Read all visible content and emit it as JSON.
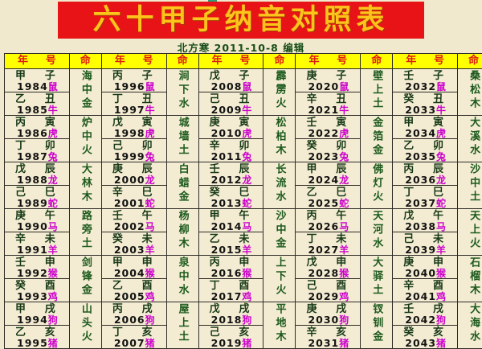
{
  "page": {
    "title": "六十甲子纳音对照表",
    "subtitle": "北方寒 2011-10-8 编辑"
  },
  "colors": {
    "page_background": "#f1e9cd",
    "title_bar_background": "#e81317",
    "title_text": "#ffc41c",
    "header_background": "#ffff00",
    "header_text": "#e01c10",
    "stem_branch_text": "#173917",
    "ming_text": "#1d5a1d",
    "year_number_text": "#131313",
    "zodiac_text": "#cc00cc",
    "grid_border": "#2e2c28"
  },
  "table": {
    "header": {
      "year_left": "年",
      "year_right": "号",
      "ming": "命"
    },
    "groups": [
      {
        "pairs": [
          {
            "rows": [
              {
                "stem": "甲",
                "branch": "子",
                "year": "1984",
                "zodiac": "鼠"
              },
              {
                "stem": "乙",
                "branch": "丑",
                "year": "1985",
                "zodiac": "牛"
              }
            ],
            "ming": "海中金"
          },
          {
            "rows": [
              {
                "stem": "丙",
                "branch": "寅",
                "year": "1986",
                "zodiac": "虎"
              },
              {
                "stem": "丁",
                "branch": "卯",
                "year": "1987",
                "zodiac": "兔"
              }
            ],
            "ming": "炉中火"
          },
          {
            "rows": [
              {
                "stem": "戊",
                "branch": "辰",
                "year": "1988",
                "zodiac": "龙"
              },
              {
                "stem": "己",
                "branch": "巳",
                "year": "1989",
                "zodiac": "蛇"
              }
            ],
            "ming": "大林木"
          },
          {
            "rows": [
              {
                "stem": "庚",
                "branch": "午",
                "year": "1990",
                "zodiac": "马"
              },
              {
                "stem": "辛",
                "branch": "未",
                "year": "1991",
                "zodiac": "羊"
              }
            ],
            "ming": "路旁土"
          },
          {
            "rows": [
              {
                "stem": "壬",
                "branch": "申",
                "year": "1992",
                "zodiac": "猴"
              },
              {
                "stem": "癸",
                "branch": "酉",
                "year": "1993",
                "zodiac": "鸡"
              }
            ],
            "ming": "剑锋金"
          },
          {
            "rows": [
              {
                "stem": "甲",
                "branch": "戌",
                "year": "1994",
                "zodiac": "狗"
              },
              {
                "stem": "乙",
                "branch": "亥",
                "year": "1995",
                "zodiac": "猪"
              }
            ],
            "ming": "山头火"
          }
        ]
      },
      {
        "pairs": [
          {
            "rows": [
              {
                "stem": "丙",
                "branch": "子",
                "year": "1996",
                "zodiac": "鼠"
              },
              {
                "stem": "丁",
                "branch": "丑",
                "year": "1997",
                "zodiac": "牛"
              }
            ],
            "ming": "涧下水"
          },
          {
            "rows": [
              {
                "stem": "戊",
                "branch": "寅",
                "year": "1998",
                "zodiac": "虎"
              },
              {
                "stem": "己",
                "branch": "卯",
                "year": "1999",
                "zodiac": "兔"
              }
            ],
            "ming": "城墙土"
          },
          {
            "rows": [
              {
                "stem": "庚",
                "branch": "辰",
                "year": "2000",
                "zodiac": "龙"
              },
              {
                "stem": "辛",
                "branch": "巳",
                "year": "2001",
                "zodiac": "蛇"
              }
            ],
            "ming": "白蜡金"
          },
          {
            "rows": [
              {
                "stem": "壬",
                "branch": "午",
                "year": "2002",
                "zodiac": "马"
              },
              {
                "stem": "癸",
                "branch": "未",
                "year": "2003",
                "zodiac": "羊"
              }
            ],
            "ming": "杨柳木"
          },
          {
            "rows": [
              {
                "stem": "甲",
                "branch": "申",
                "year": "2004",
                "zodiac": "猴"
              },
              {
                "stem": "乙",
                "branch": "酉",
                "year": "2005",
                "zodiac": "鸡"
              }
            ],
            "ming": "泉中水"
          },
          {
            "rows": [
              {
                "stem": "丙",
                "branch": "戌",
                "year": "2006",
                "zodiac": "狗"
              },
              {
                "stem": "丁",
                "branch": "亥",
                "year": "2007",
                "zodiac": "猪"
              }
            ],
            "ming": "屋上土"
          }
        ]
      },
      {
        "pairs": [
          {
            "rows": [
              {
                "stem": "戊",
                "branch": "子",
                "year": "2008",
                "zodiac": "鼠"
              },
              {
                "stem": "己",
                "branch": "丑",
                "year": "2009",
                "zodiac": "牛"
              }
            ],
            "ming": "霹雳火"
          },
          {
            "rows": [
              {
                "stem": "庚",
                "branch": "寅",
                "year": "2010",
                "zodiac": "虎"
              },
              {
                "stem": "辛",
                "branch": "卯",
                "year": "2011",
                "zodiac": "兔"
              }
            ],
            "ming": "松柏木"
          },
          {
            "rows": [
              {
                "stem": "壬",
                "branch": "辰",
                "year": "2012",
                "zodiac": "龙"
              },
              {
                "stem": "癸",
                "branch": "巳",
                "year": "2013",
                "zodiac": "蛇"
              }
            ],
            "ming": "长流水"
          },
          {
            "rows": [
              {
                "stem": "甲",
                "branch": "午",
                "year": "2014",
                "zodiac": "马"
              },
              {
                "stem": "乙",
                "branch": "未",
                "year": "2015",
                "zodiac": "羊"
              }
            ],
            "ming": "沙中金"
          },
          {
            "rows": [
              {
                "stem": "丙",
                "branch": "申",
                "year": "2016",
                "zodiac": "猴"
              },
              {
                "stem": "丁",
                "branch": "酉",
                "year": "2017",
                "zodiac": "鸡"
              }
            ],
            "ming": "上下火"
          },
          {
            "rows": [
              {
                "stem": "戊",
                "branch": "戌",
                "year": "2018",
                "zodiac": "狗"
              },
              {
                "stem": "己",
                "branch": "亥",
                "year": "2019",
                "zodiac": "猪"
              }
            ],
            "ming": "平地木"
          }
        ]
      },
      {
        "pairs": [
          {
            "rows": [
              {
                "stem": "庚",
                "branch": "子",
                "year": "2020",
                "zodiac": "鼠"
              },
              {
                "stem": "辛",
                "branch": "丑",
                "year": "2021",
                "zodiac": "牛"
              }
            ],
            "ming": "壁上土"
          },
          {
            "rows": [
              {
                "stem": "壬",
                "branch": "寅",
                "year": "2022",
                "zodiac": "虎"
              },
              {
                "stem": "癸",
                "branch": "卯",
                "year": "2023",
                "zodiac": "兔"
              }
            ],
            "ming": "金箔金"
          },
          {
            "rows": [
              {
                "stem": "甲",
                "branch": "辰",
                "year": "2024",
                "zodiac": "龙"
              },
              {
                "stem": "乙",
                "branch": "巳",
                "year": "2025",
                "zodiac": "蛇"
              }
            ],
            "ming": "佛灯火"
          },
          {
            "rows": [
              {
                "stem": "丙",
                "branch": "午",
                "year": "2026",
                "zodiac": "马"
              },
              {
                "stem": "丁",
                "branch": "未",
                "year": "2027",
                "zodiac": "羊"
              }
            ],
            "ming": "天河水"
          },
          {
            "rows": [
              {
                "stem": "戊",
                "branch": "申",
                "year": "2028",
                "zodiac": "猴"
              },
              {
                "stem": "己",
                "branch": "酉",
                "year": "2029",
                "zodiac": "鸡"
              }
            ],
            "ming": "大驿土"
          },
          {
            "rows": [
              {
                "stem": "庚",
                "branch": "戌",
                "year": "2030",
                "zodiac": "狗"
              },
              {
                "stem": "辛",
                "branch": "亥",
                "year": "2031",
                "zodiac": "猪"
              }
            ],
            "ming": "钗钏金"
          }
        ]
      },
      {
        "pairs": [
          {
            "rows": [
              {
                "stem": "壬",
                "branch": "子",
                "year": "2032",
                "zodiac": "鼠"
              },
              {
                "stem": "癸",
                "branch": "丑",
                "year": "2033",
                "zodiac": "牛"
              }
            ],
            "ming": "桑松木"
          },
          {
            "rows": [
              {
                "stem": "甲",
                "branch": "寅",
                "year": "2034",
                "zodiac": "虎"
              },
              {
                "stem": "乙",
                "branch": "卯",
                "year": "2035",
                "zodiac": "兔"
              }
            ],
            "ming": "大溪水"
          },
          {
            "rows": [
              {
                "stem": "丙",
                "branch": "辰",
                "year": "2036",
                "zodiac": "龙"
              },
              {
                "stem": "丁",
                "branch": "巳",
                "year": "2037",
                "zodiac": "蛇"
              }
            ],
            "ming": "沙中土"
          },
          {
            "rows": [
              {
                "stem": "戊",
                "branch": "午",
                "year": "2038",
                "zodiac": "马"
              },
              {
                "stem": "己",
                "branch": "未",
                "year": "2039",
                "zodiac": "羊"
              }
            ],
            "ming": "天上火"
          },
          {
            "rows": [
              {
                "stem": "庚",
                "branch": "申",
                "year": "2040",
                "zodiac": "猴"
              },
              {
                "stem": "辛",
                "branch": "酉",
                "year": "2041",
                "zodiac": "鸡"
              }
            ],
            "ming": "石榴木"
          },
          {
            "rows": [
              {
                "stem": "壬",
                "branch": "戌",
                "year": "2042",
                "zodiac": "狗"
              },
              {
                "stem": "癸",
                "branch": "亥",
                "year": "2043",
                "zodiac": "猪"
              }
            ],
            "ming": "大海水"
          }
        ]
      }
    ]
  }
}
